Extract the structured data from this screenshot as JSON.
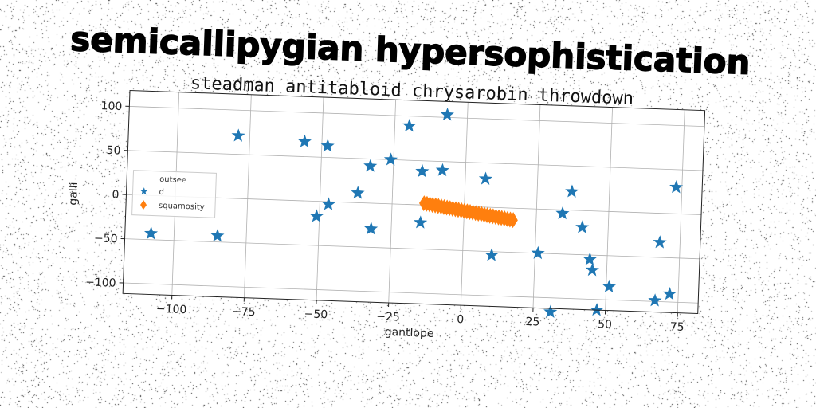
{
  "chart_data": {
    "type": "scatter",
    "title": "semicallipygian hypersophistication",
    "subtitle": "steadman antitabloid chrysarobin throwdown",
    "xlabel": "gantlope",
    "ylabel": "galli",
    "xlim": [
      -117,
      82
    ],
    "ylim": [
      -112,
      118
    ],
    "xticks": [
      -100,
      -75,
      -50,
      -25,
      0,
      25,
      50,
      75
    ],
    "xtick_labels": [
      "−100",
      "−75",
      "−50",
      "−25",
      "0",
      "25",
      "50",
      "75"
    ],
    "yticks": [
      -100,
      -50,
      0,
      50,
      100
    ],
    "ytick_labels": [
      "−100",
      "−50",
      "0",
      "50",
      "100"
    ],
    "grid": true,
    "legend": {
      "title": "outsee",
      "placement": "center-left",
      "entries": [
        "d",
        "squamosity"
      ]
    },
    "series": [
      {
        "name": "d",
        "marker": "star",
        "color": "#1f77b4",
        "x": [
          -108,
          -85,
          -79,
          -56,
          -51,
          -48,
          -47,
          -37,
          -33,
          -32,
          -26,
          -20,
          -15,
          -15,
          -8,
          -7,
          7,
          10,
          26,
          31,
          34,
          37,
          41,
          44,
          45,
          47,
          51,
          67,
          68,
          72,
          73
        ],
        "y": [
          -43,
          -43,
          71,
          67,
          -17,
          63,
          -3,
          11,
          42,
          -29,
          50,
          89,
          -20,
          38,
          40,
          103,
          32,
          -54,
          -50,
          -116,
          -4,
          21,
          -19,
          -55,
          -67,
          -112,
          -85,
          -99,
          -33,
          -91,
          30
        ]
      },
      {
        "name": "squamosity",
        "marker": "thin_diamond",
        "color": "#ff7f0e",
        "x": [
          -14.0,
          -13.0,
          -12.0,
          -11.0,
          -10.0,
          -9.0,
          -8.0,
          -7.0,
          -6.0,
          -5.0,
          -4.0,
          -3.0,
          -2.0,
          -1.0,
          0.0,
          1.0,
          2.0,
          3.0,
          4.0,
          5.0,
          6.0,
          7.0,
          8.0,
          9.0,
          10.0,
          11.0,
          12.0,
          13.0,
          14.0,
          15.0,
          16.0,
          17.0
        ],
        "y": [
          2.0,
          1.5,
          1.0,
          0.5,
          0.0,
          -0.5,
          -1.0,
          -1.5,
          -2.0,
          -2.5,
          -3.0,
          -3.5,
          -4.0,
          -4.5,
          -5.0,
          -5.5,
          -6.0,
          -6.5,
          -7.0,
          -7.5,
          -8.0,
          -8.5,
          -9.0,
          -9.5,
          -10.0,
          -10.5,
          -11.0,
          -11.5,
          -12.0,
          -12.5,
          -13.0,
          -13.5
        ]
      }
    ]
  }
}
